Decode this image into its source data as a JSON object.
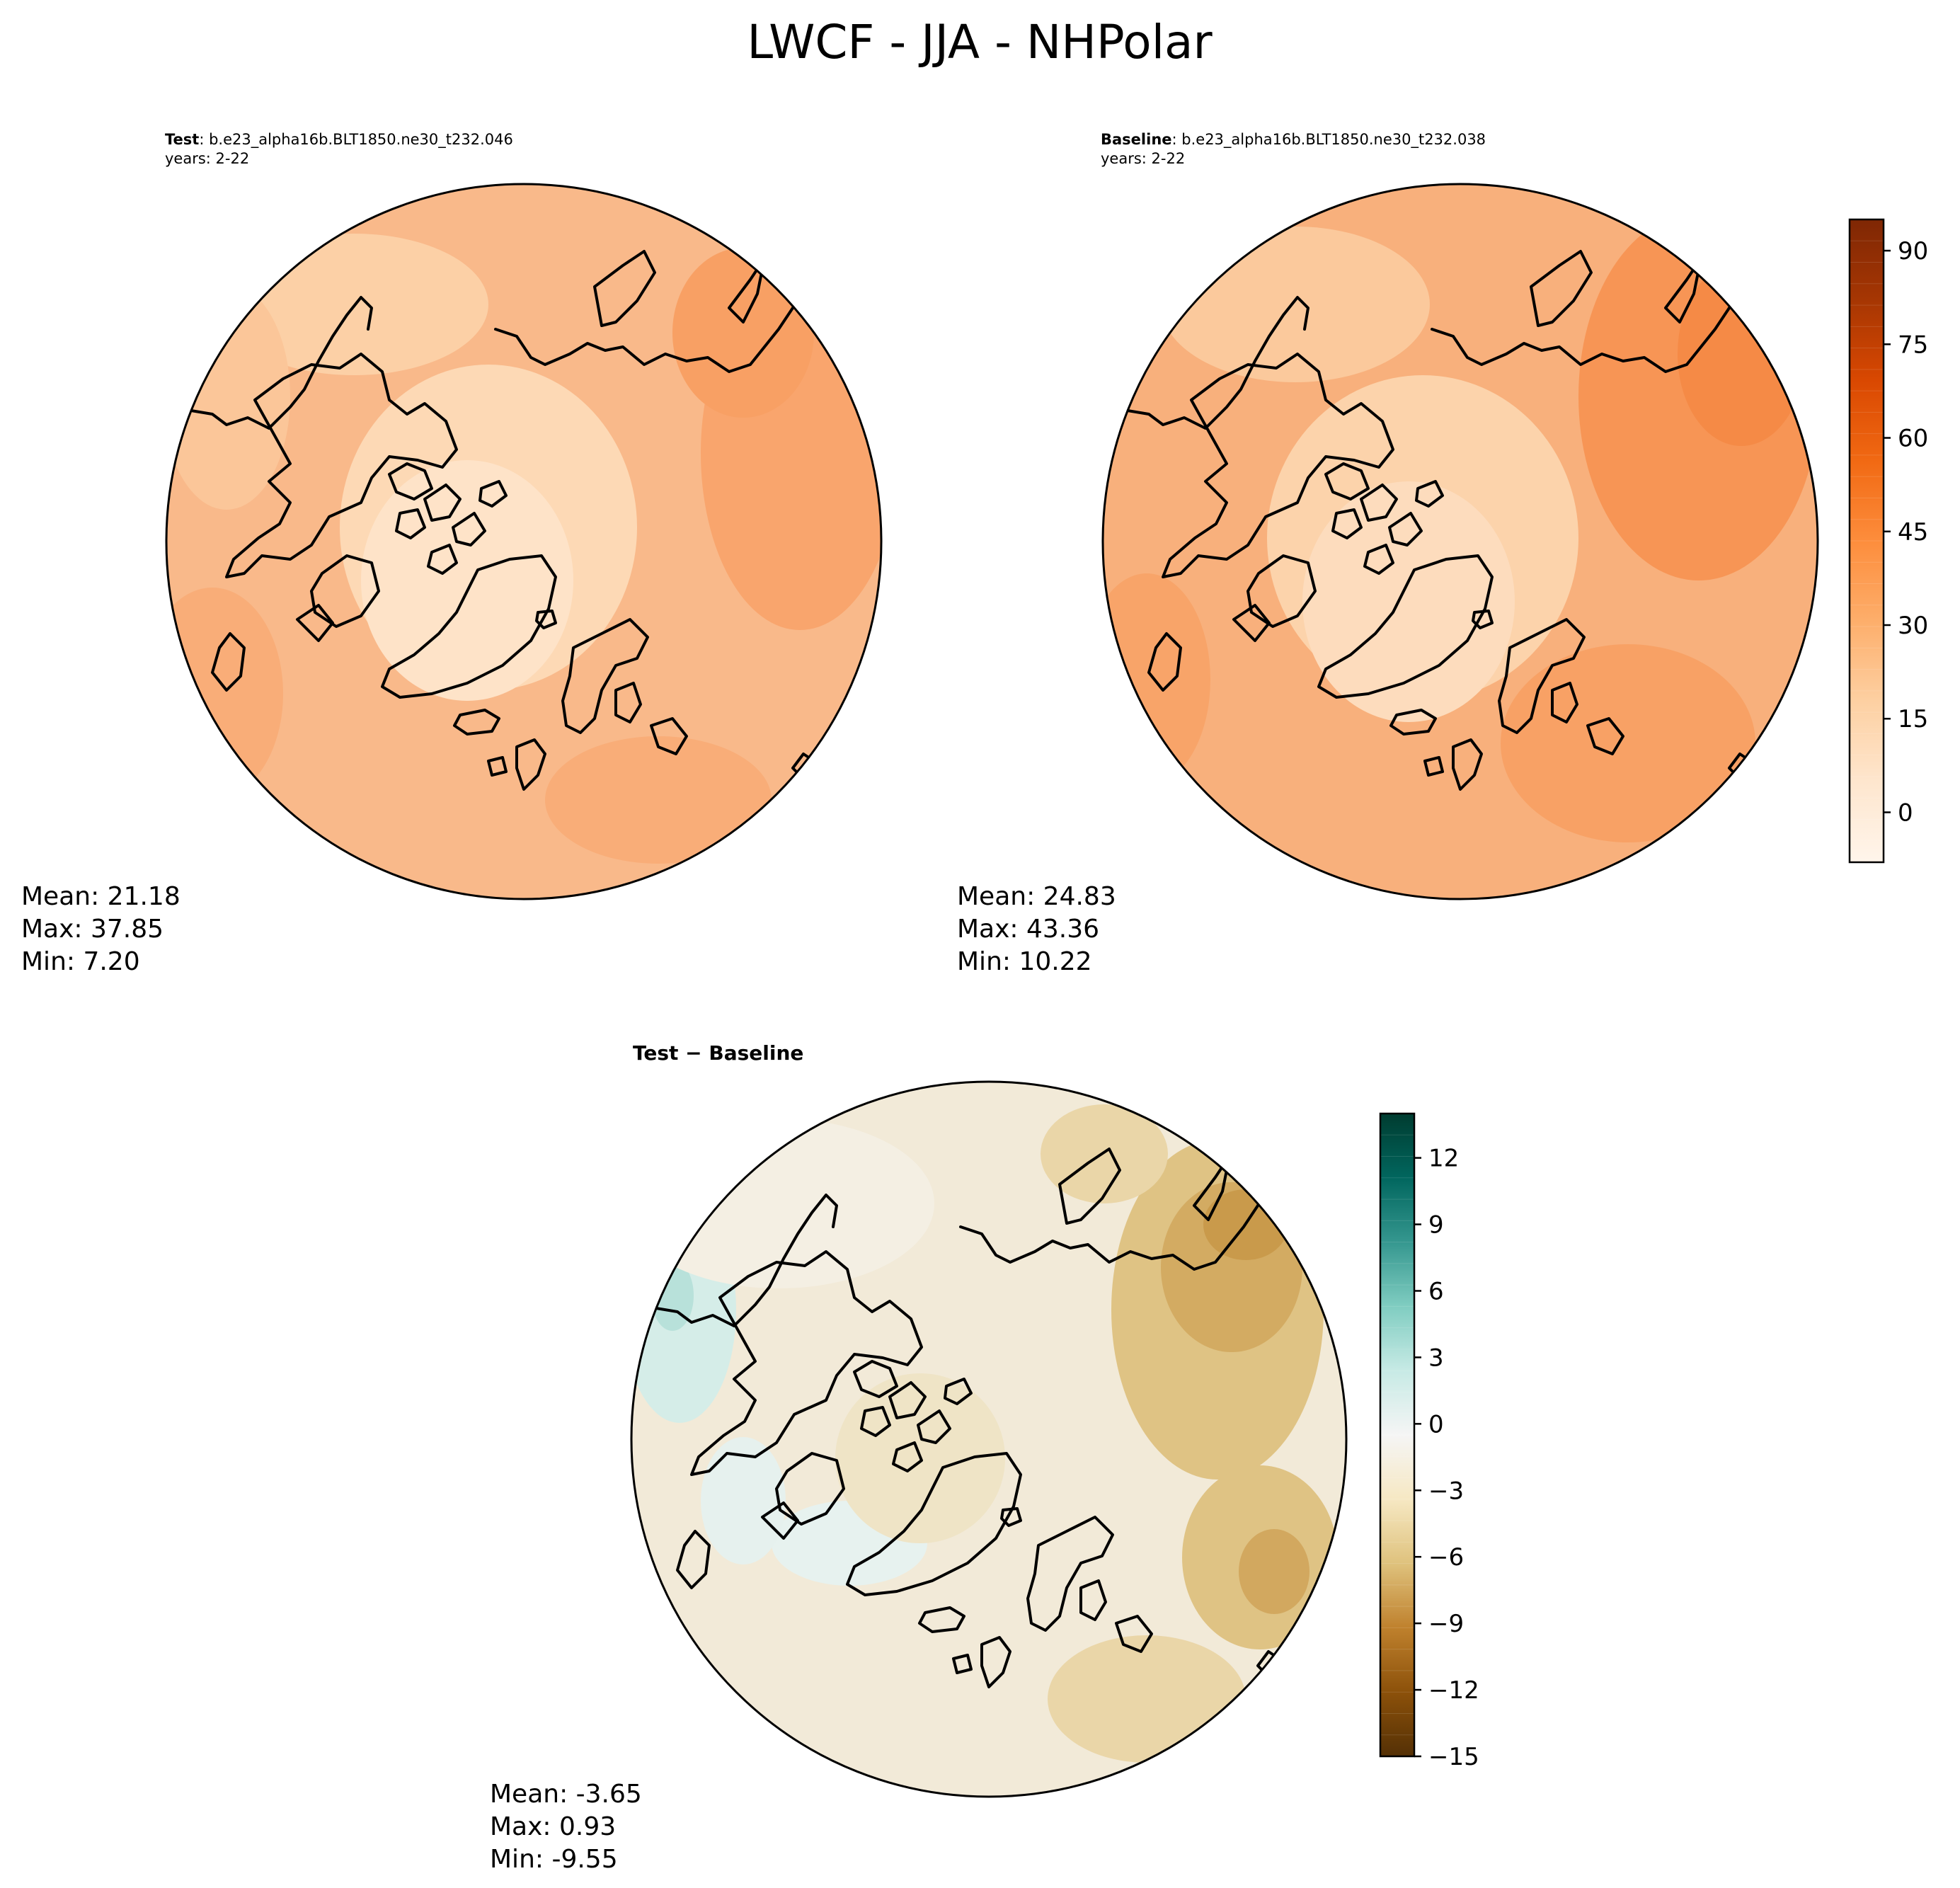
{
  "figure": {
    "title": "LWCF - JJA - NHPolar"
  },
  "panels": {
    "test": {
      "label_bold": "Test",
      "label_rest": ": b.e23_alpha16b.BLT1850.ne30_t232.046",
      "years": "years: 2-22",
      "stats": [
        "Mean: 21.18",
        "Max: 37.85",
        "Min:  7.20"
      ]
    },
    "baseline": {
      "label_bold": "Baseline",
      "label_rest": ": b.e23_alpha16b.BLT1850.ne30_t232.038",
      "years": "years: 2-22",
      "stats": [
        "Mean: 24.83",
        "Max: 43.36",
        "Min: 10.22"
      ]
    },
    "diff": {
      "label": "Test − Baseline",
      "stats": [
        "Mean: -3.65",
        "Max:  0.93",
        "Min: -9.55"
      ]
    }
  },
  "colorbars": {
    "main": {
      "colormap": "Oranges",
      "range": [
        -8,
        95
      ],
      "ticks": [
        0,
        15,
        30,
        45,
        60,
        75,
        90
      ],
      "tick_labels": [
        "0",
        "15",
        "30",
        "45",
        "60",
        "75",
        "90"
      ],
      "colors": [
        "#fff5eb",
        "#fee6ce",
        "#fdd0a2",
        "#fdae6b",
        "#fd8d3c",
        "#f16913",
        "#d94801",
        "#a63603",
        "#7f2704"
      ]
    },
    "diff": {
      "colormap": "BrBG",
      "range": [
        -15,
        14
      ],
      "ticks": [
        -15,
        -12,
        -9,
        -6,
        -3,
        0,
        3,
        6,
        9,
        12
      ],
      "tick_labels": [
        "−15",
        "−12",
        "−9",
        "−6",
        "−3",
        "0",
        "3",
        "6",
        "9",
        "12"
      ],
      "colors": [
        "#543005",
        "#8c510a",
        "#bf812d",
        "#dfc27d",
        "#f6e8c3",
        "#f5f5f5",
        "#c7eae5",
        "#80cdc1",
        "#35978f",
        "#01665e",
        "#003c30"
      ]
    }
  },
  "map_colors": {
    "test_base": "#f9b98a",
    "baseline_base": "#f8b07c",
    "diff_base": "#f2ead8"
  }
}
